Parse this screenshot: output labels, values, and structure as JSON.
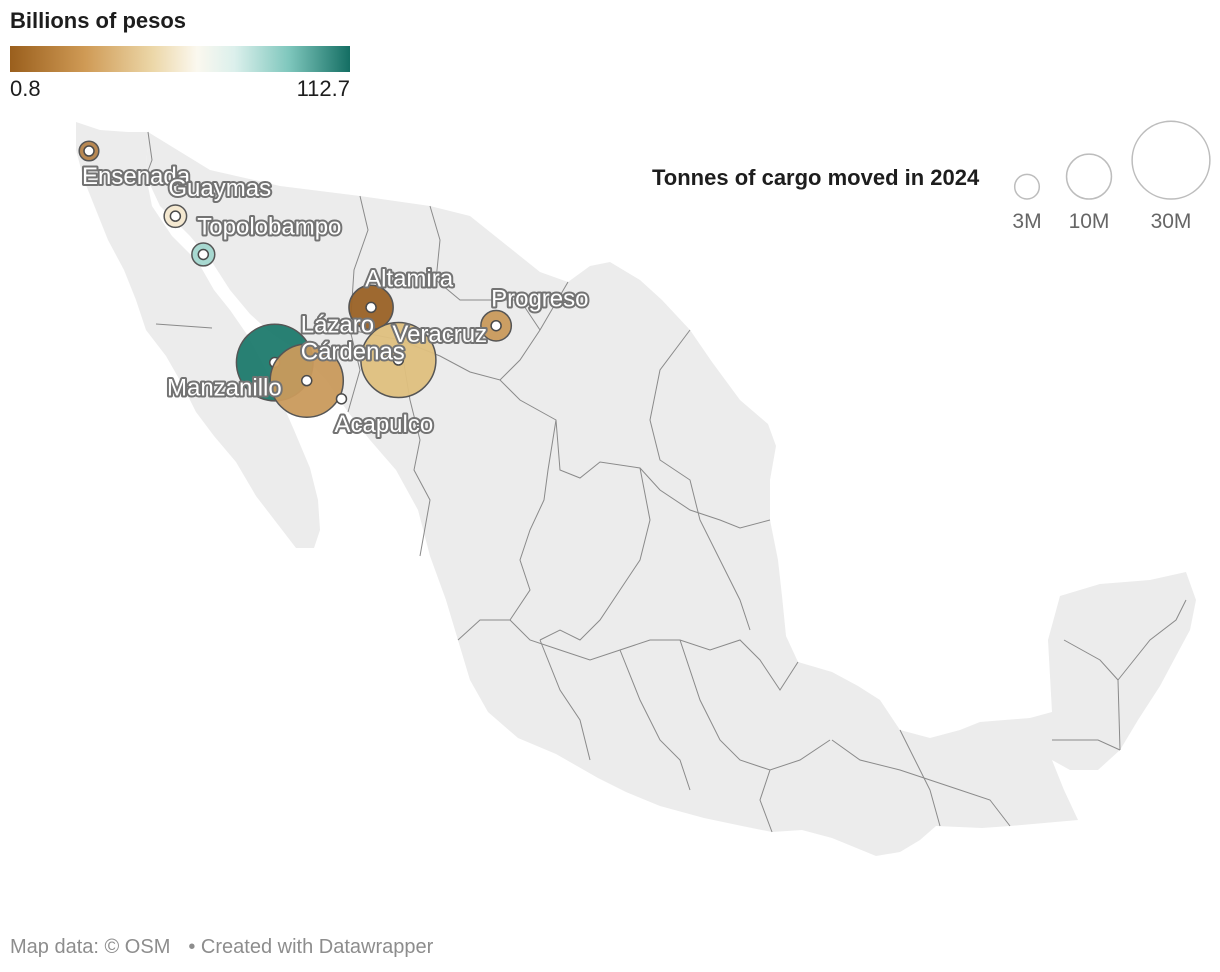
{
  "color_legend": {
    "title": "Billions of pesos",
    "min_label": "0.8",
    "max_label": "112.7",
    "min_value": 0.8,
    "max_value": 112.7,
    "colors": [
      "#9a5f1d",
      "#cf9a55",
      "#ecd7a8",
      "#fbf8ef",
      "#dcf0ec",
      "#7fc7bd",
      "#146e63"
    ]
  },
  "size_legend": {
    "title": "Tonnes of cargo moved in 2024",
    "items": [
      {
        "label": "3M",
        "tonnes_millions": 3
      },
      {
        "label": "10M",
        "tonnes_millions": 10
      },
      {
        "label": "30M",
        "tonnes_millions": 30
      }
    ]
  },
  "ports": [
    {
      "name": "Ensenada",
      "label_lines": [
        "Ensenada"
      ],
      "lat": 31.87,
      "lon": -116.62,
      "tonnes_millions": 1.9,
      "color": "#b5834a"
    },
    {
      "name": "Guaymas",
      "label_lines": [
        "Guaymas"
      ],
      "lat": 27.92,
      "lon": -110.9,
      "tonnes_millions": 2.5,
      "color": "#f4e8cf"
    },
    {
      "name": "Topolobampo",
      "label_lines": [
        "Topolobampo"
      ],
      "lat": 25.6,
      "lon": -109.05,
      "tonnes_millions": 2.6,
      "color": "#a3d7cf"
    },
    {
      "name": "Altamira",
      "label_lines": [
        "Altamira"
      ],
      "lat": 22.39,
      "lon": -97.94,
      "tonnes_millions": 9.7,
      "color": "#9a6226"
    },
    {
      "name": "Progreso",
      "label_lines": [
        "Progreso"
      ],
      "lat": 21.28,
      "lon": -89.66,
      "tonnes_millions": 4.6,
      "color": "#c99a5c"
    },
    {
      "name": "Veracruz",
      "label_lines": [
        "Veracruz"
      ],
      "lat": 19.2,
      "lon": -96.13,
      "tonnes_millions": 27.9,
      "color": "#dfc07e"
    },
    {
      "name": "Manzanillo",
      "label_lines": [
        "Manzanillo"
      ],
      "lat": 19.05,
      "lon": -104.32,
      "tonnes_millions": 29.1,
      "color": "#1d7a6d"
    },
    {
      "name": "Lázaro Cárdenas",
      "label_lines": [
        "Lázaro",
        "Cárdenas"
      ],
      "lat": 17.95,
      "lon": -102.2,
      "tonnes_millions": 26.5,
      "color": "#c99a5c"
    },
    {
      "name": "Acapulco",
      "label_lines": [
        "Acapulco"
      ],
      "lat": 16.85,
      "lon": -99.9,
      "tonnes_millions": 0.1,
      "color": "#ffffff"
    }
  ],
  "footer": {
    "map_credit": "Map data: © OSM",
    "created_with": "• Created with Datawrapper"
  }
}
